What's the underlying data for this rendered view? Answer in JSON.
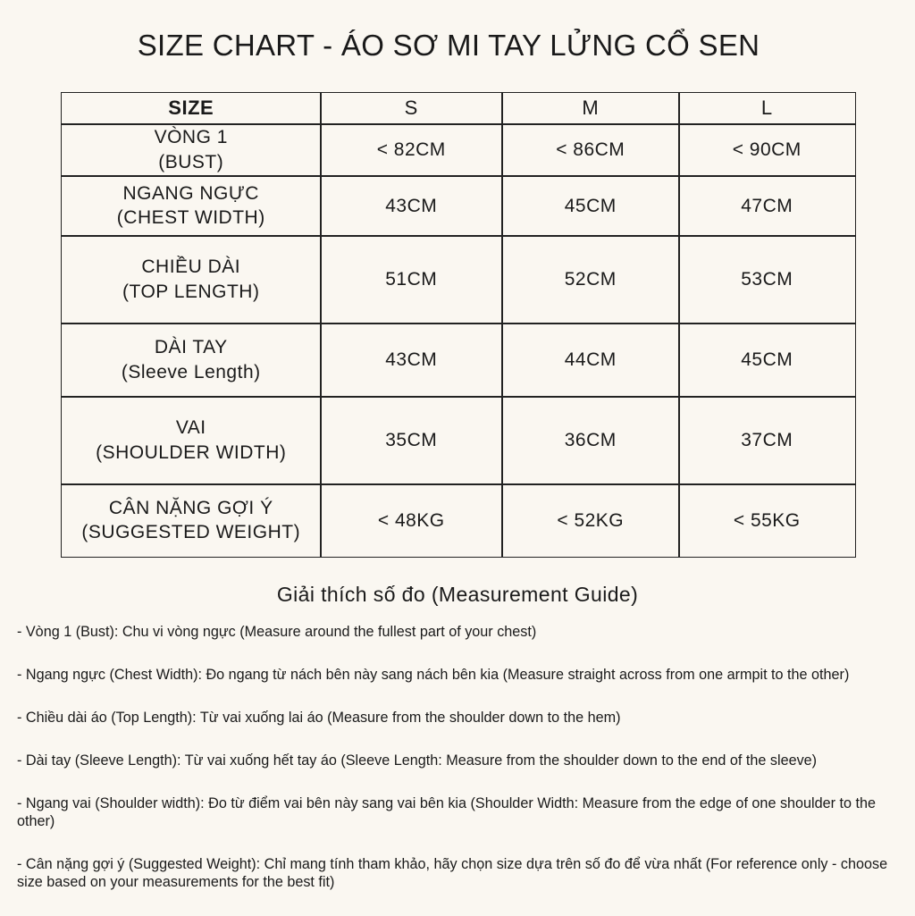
{
  "title": "SIZE CHART - ÁO SƠ MI TAY LỬNG CỔ SEN",
  "table": {
    "headers": [
      "SIZE",
      "S",
      "M",
      "L"
    ],
    "rows": [
      {
        "label": "VÒNG 1\n(BUST)",
        "values": [
          "< 82CM",
          "< 86CM",
          "< 90CM"
        ]
      },
      {
        "label": "NGANG NGỰC\n(CHEST WIDTH)",
        "values": [
          "43CM",
          "45CM",
          "47CM"
        ]
      },
      {
        "label": "CHIỀU DÀI\n(TOP LENGTH)",
        "values": [
          "51CM",
          "52CM",
          "53CM"
        ]
      },
      {
        "label": "DÀI TAY\n(Sleeve Length)",
        "values": [
          "43CM",
          "44CM",
          "45CM"
        ]
      },
      {
        "label": "VAI\n(SHOULDER WIDTH)",
        "values": [
          "35CM",
          "36CM",
          "37CM"
        ]
      },
      {
        "label": "CÂN NẶNG GỢI Ý\n(SUGGESTED WEIGHT)",
        "values": [
          "< 48KG",
          "< 52KG",
          "< 55KG"
        ]
      }
    ]
  },
  "guide": {
    "title": "Giải thích số đo (Measurement Guide)",
    "items": [
      "- Vòng 1 (Bust): Chu vi vòng ngực (Measure around the fullest part of your chest)",
      "- Ngang ngực (Chest Width): Đo ngang từ nách bên này sang nách bên kia (Measure straight across from one armpit to the other)",
      "- Chiều dài áo (Top Length): Từ vai xuống lai áo (Measure from the shoulder down to the hem)",
      "- Dài tay (Sleeve Length): Từ vai xuống hết tay áo (Sleeve Length: Measure from the shoulder down to the end of the sleeve)",
      "- Ngang vai (Shoulder width): Đo từ điểm vai bên này sang vai bên kia (Shoulder Width: Measure from the edge of one shoulder to the other)",
      "- Cân nặng gợi ý (Suggested Weight): Chỉ mang tính tham khảo, hãy chọn size dựa trên số đo để vừa nhất (For reference only - choose size based on your measurements for the best fit)"
    ]
  }
}
